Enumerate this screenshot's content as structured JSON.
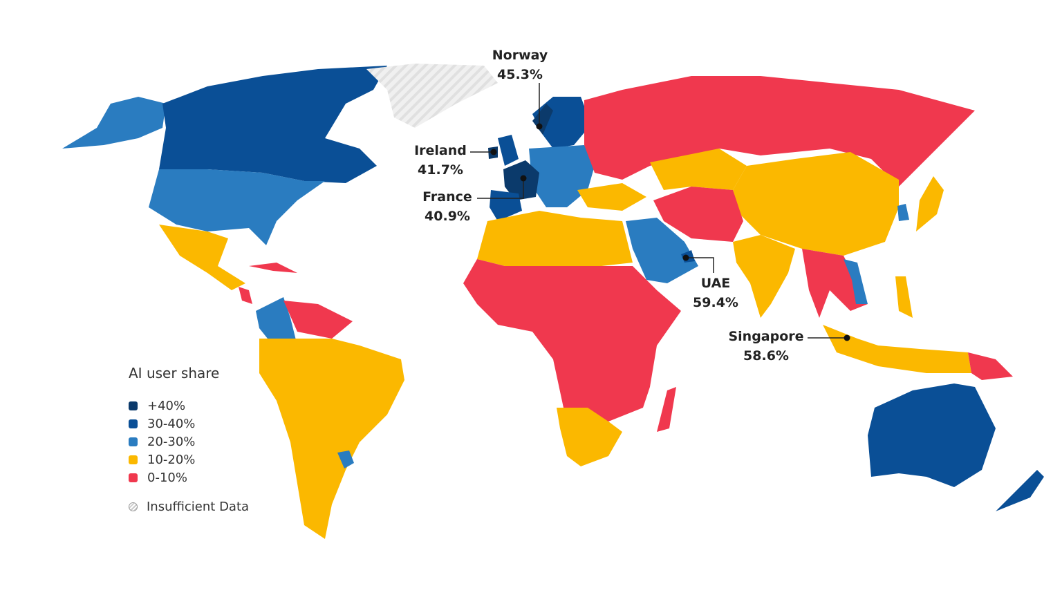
{
  "legend": {
    "title": "AI user share",
    "items": [
      {
        "label": "+40%",
        "color": "#0b3a6b"
      },
      {
        "label": "30-40%",
        "color": "#0a4f96"
      },
      {
        "label": "20-30%",
        "color": "#2a7cc0"
      },
      {
        "label": "10-20%",
        "color": "#fbb800"
      },
      {
        "label": "0-10%",
        "color": "#f0384e"
      }
    ],
    "insufficient": "Insufficient Data"
  },
  "callouts": [
    {
      "country": "Norway",
      "value": "45.3%"
    },
    {
      "country": "Ireland",
      "value": "41.7%"
    },
    {
      "country": "France",
      "value": "40.9%"
    },
    {
      "country": "UAE",
      "value": "59.4%"
    },
    {
      "country": "Singapore",
      "value": "58.6%"
    }
  ]
}
